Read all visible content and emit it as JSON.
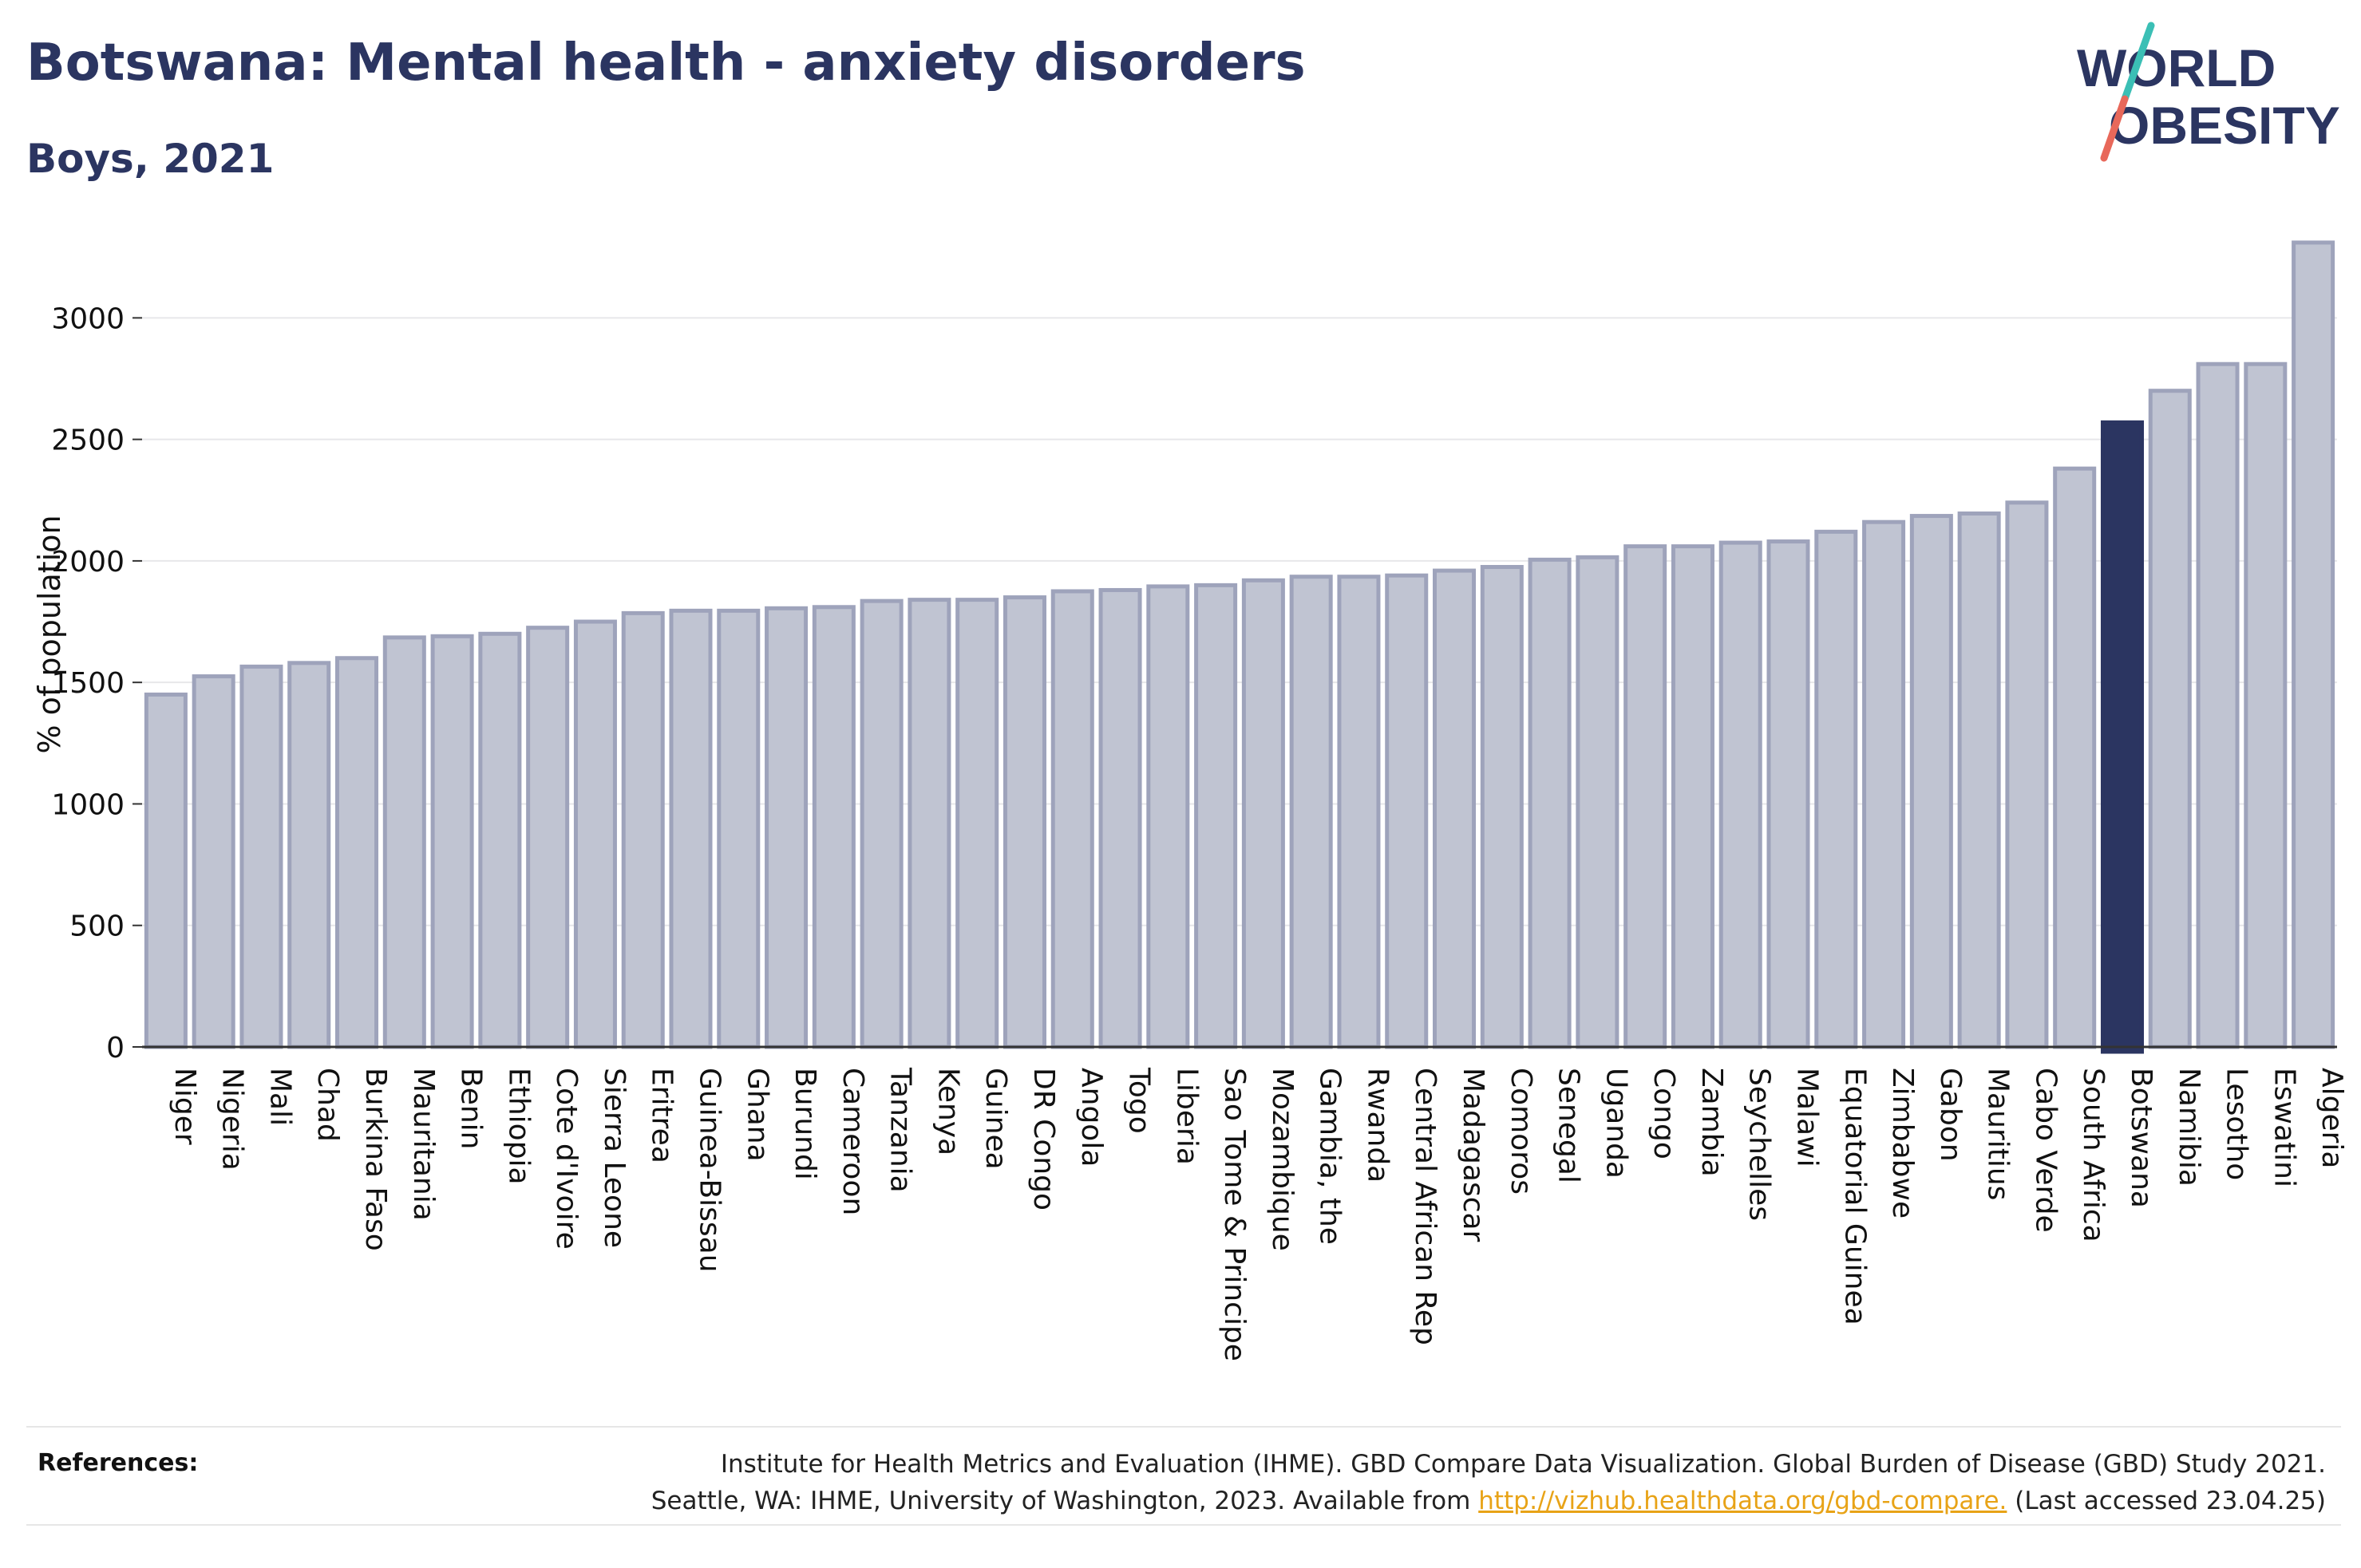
{
  "header": {
    "title": "Botswana: Mental health - anxiety disorders",
    "subtitle": "Boys, 2021"
  },
  "logo": {
    "line1": "WORLD",
    "line2": "OBESITY",
    "slash_colors": [
      "#3bbfb5",
      "#e8685a"
    ]
  },
  "chart_data": {
    "type": "bar",
    "ylabel": "% of population",
    "ylim": [
      0,
      3300
    ],
    "yticks": [
      0,
      500,
      1000,
      1500,
      2000,
      2500,
      3000
    ],
    "grid": true,
    "highlight": "Botswana",
    "colors": {
      "default": "#c0c4d2",
      "default_edge": "#9ea3bb",
      "highlight": "#2b3561"
    },
    "categories": [
      "Niger",
      "Nigeria",
      "Mali",
      "Chad",
      "Burkina Faso",
      "Mauritania",
      "Benin",
      "Ethiopia",
      "Cote d'Ivoire",
      "Sierra Leone",
      "Eritrea",
      "Guinea-Bissau",
      "Ghana",
      "Burundi",
      "Cameroon",
      "Tanzania",
      "Kenya",
      "Guinea",
      "DR Congo",
      "Angola",
      "Togo",
      "Liberia",
      "Sao Tome & Principe",
      "Mozambique",
      "Gambia, the",
      "Rwanda",
      "Central African Rep",
      "Madagascar",
      "Comoros",
      "Senegal",
      "Uganda",
      "Congo",
      "Zambia",
      "Seychelles",
      "Malawi",
      "Equatorial Guinea",
      "Zimbabwe",
      "Gabon",
      "Mauritius",
      "Cabo Verde",
      "South Africa",
      "Botswana",
      "Namibia",
      "Lesotho",
      "Eswatini",
      "Algeria"
    ],
    "values": [
      1450,
      1525,
      1565,
      1580,
      1600,
      1685,
      1690,
      1700,
      1725,
      1750,
      1785,
      1795,
      1795,
      1805,
      1810,
      1835,
      1840,
      1840,
      1850,
      1875,
      1880,
      1895,
      1900,
      1920,
      1935,
      1935,
      1940,
      1960,
      1975,
      2005,
      2015,
      2060,
      2060,
      2075,
      2080,
      2120,
      2160,
      2185,
      2195,
      2240,
      2380,
      2570,
      2700,
      2810,
      2810,
      3310
    ]
  },
  "references": {
    "label": "References:",
    "line1": "Institute for Health Metrics and Evaluation (IHME). GBD Compare Data Visualization. Global Burden of Disease (GBD) Study 2021.",
    "line2_prefix": "Seattle, WA: IHME, University of Washington, 2023. Available from ",
    "link": "http://vizhub.healthdata.org/gbd-compare.",
    "line2_suffix": " (Last accessed 23.04.25)"
  }
}
